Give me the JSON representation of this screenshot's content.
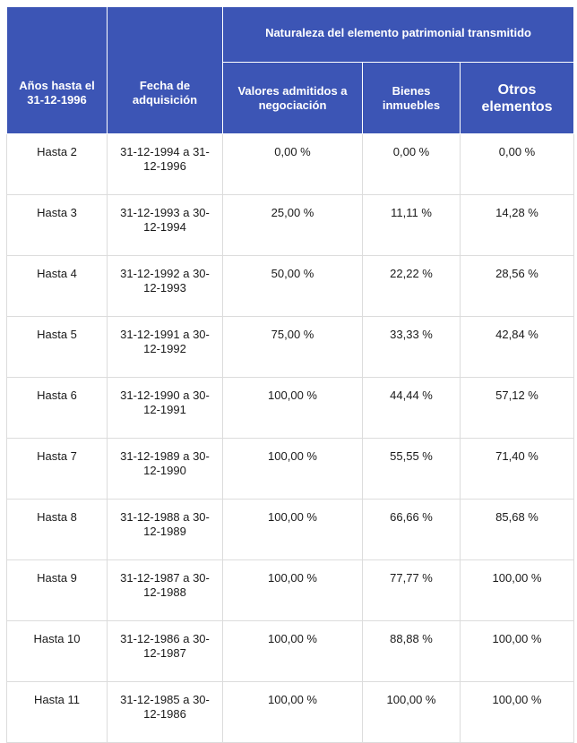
{
  "header": {
    "years_col": "Años hasta el 31-12-1996",
    "date_col": "Fecha de adquisición",
    "group_title": "Naturaleza del elemento patrimonial transmitido",
    "sub_cols": [
      "Valores admitidos a negociación",
      "Bienes inmuebles",
      "Otros elementos"
    ]
  },
  "rows": [
    {
      "years": "Hasta 2",
      "date": "31-12-1994 a 31-12-1996",
      "valores": "0,00 %",
      "inmuebles": "0,00 %",
      "otros": "0,00 %"
    },
    {
      "years": "Hasta 3",
      "date": "31-12-1993 a 30-12-1994",
      "valores": "25,00 %",
      "inmuebles": "11,11 %",
      "otros": "14,28 %"
    },
    {
      "years": "Hasta 4",
      "date": "31-12-1992 a 30-12-1993",
      "valores": "50,00 %",
      "inmuebles": "22,22 %",
      "otros": "28,56 %"
    },
    {
      "years": "Hasta 5",
      "date": "31-12-1991 a 30-12-1992",
      "valores": "75,00 %",
      "inmuebles": "33,33 %",
      "otros": "42,84 %"
    },
    {
      "years": "Hasta 6",
      "date": "31-12-1990 a 30-12-1991",
      "valores": "100,00 %",
      "inmuebles": "44,44 %",
      "otros": "57,12 %"
    },
    {
      "years": "Hasta 7",
      "date": "31-12-1989 a 30-12-1990",
      "valores": "100,00 %",
      "inmuebles": "55,55 %",
      "otros": "71,40 %"
    },
    {
      "years": "Hasta 8",
      "date": "31-12-1988 a 30-12-1989",
      "valores": "100,00 %",
      "inmuebles": "66,66 %",
      "otros": "85,68 %"
    },
    {
      "years": "Hasta 9",
      "date": "31-12-1987 a 30-12-1988",
      "valores": "100,00 %",
      "inmuebles": "77,77 %",
      "otros": "100,00 %"
    },
    {
      "years": "Hasta 10",
      "date": "31-12-1986 a 30-12-1987",
      "valores": "100,00 %",
      "inmuebles": "88,88 %",
      "otros": "100,00 %"
    },
    {
      "years": "Hasta 11",
      "date": "31-12-1985 a 30-12-1986",
      "valores": "100,00 %",
      "inmuebles": "100,00 %",
      "otros": "100,00 %"
    }
  ],
  "colors": {
    "header_bg": "#3c55b5",
    "header_text": "#ffffff",
    "cell_border": "#dcdcdc"
  }
}
